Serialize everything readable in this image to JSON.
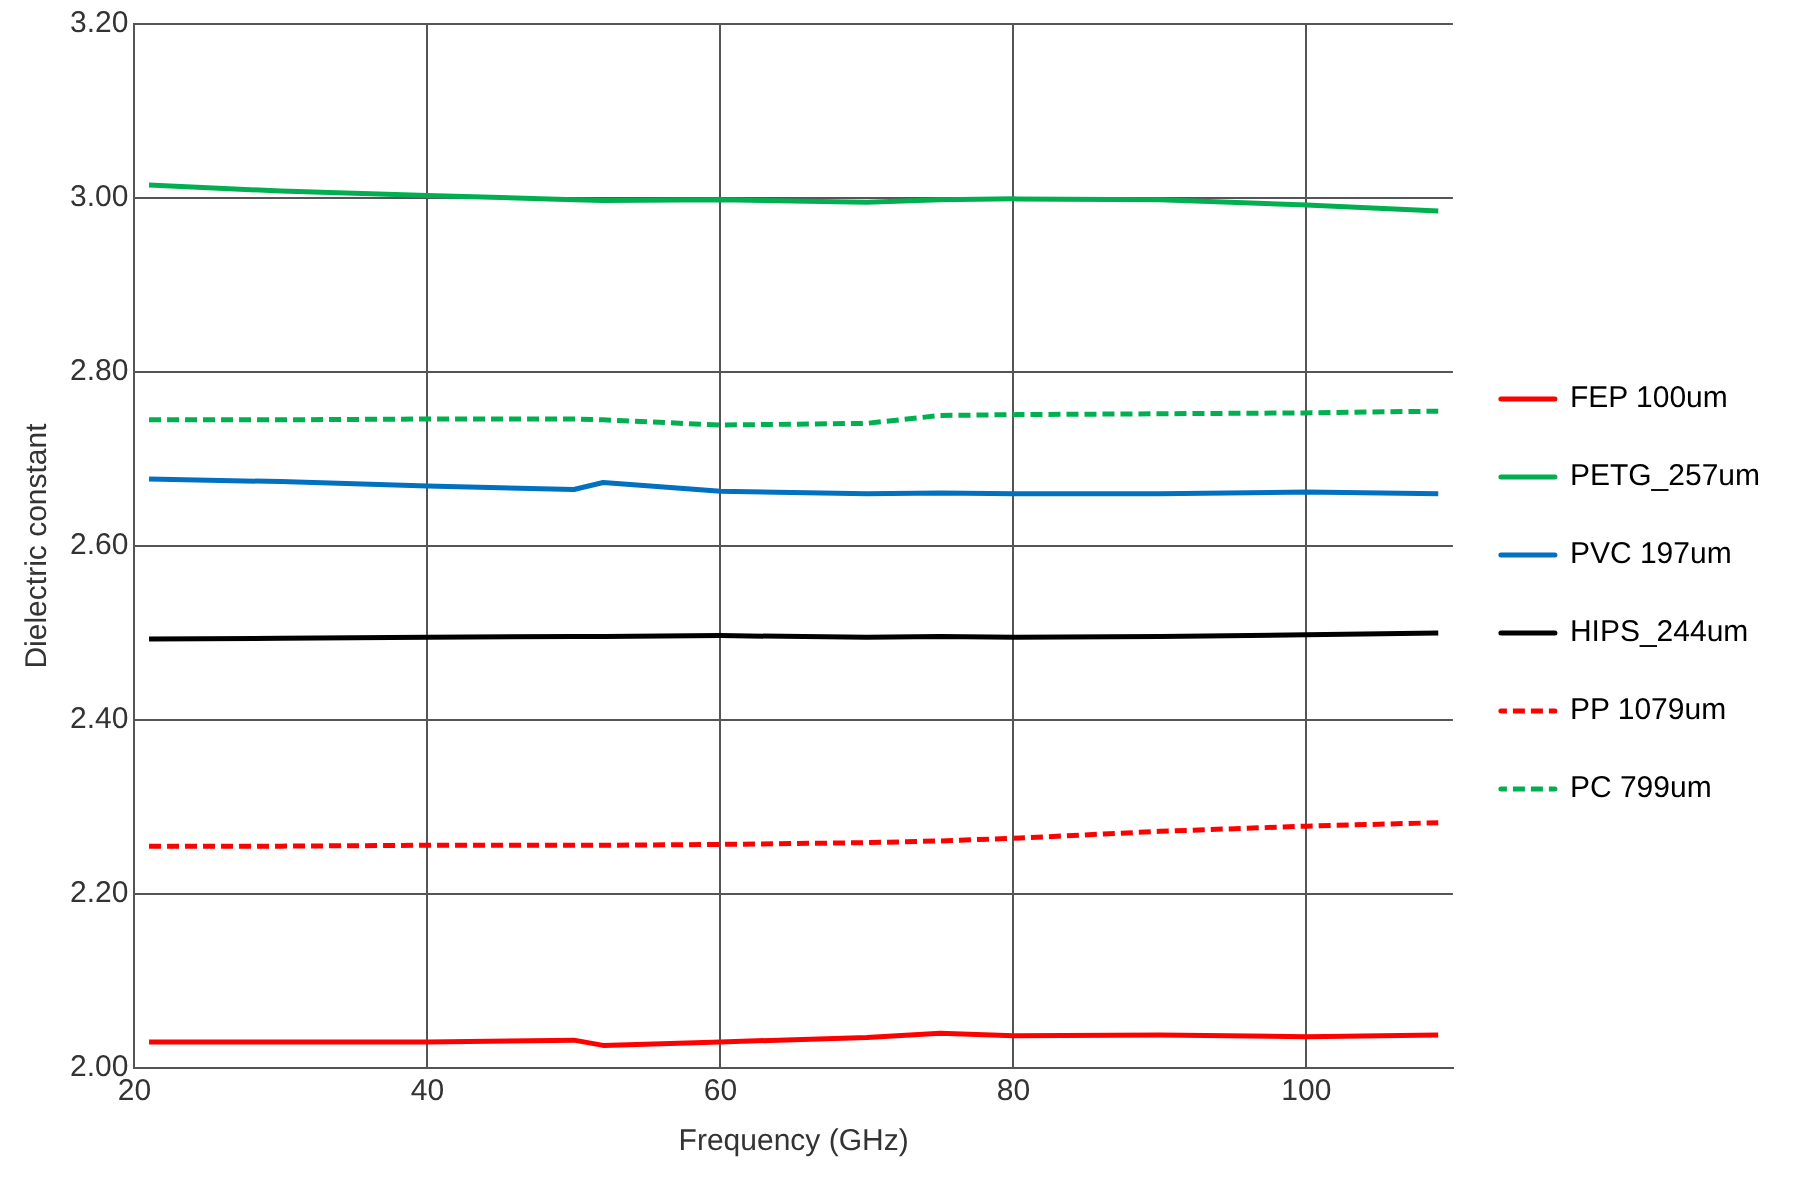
{
  "chart_data": {
    "type": "line",
    "xlabel": "Frequency (GHz)",
    "ylabel": "Dielectric constant",
    "xlim": [
      20,
      110
    ],
    "xticks": [
      20,
      40,
      60,
      80,
      100
    ],
    "ylim": [
      2.0,
      3.2
    ],
    "yticks": [
      {
        "value": 2.0,
        "label": "2.00"
      },
      {
        "value": 2.2,
        "label": "2.20"
      },
      {
        "value": 2.4,
        "label": "2.40"
      },
      {
        "value": 2.6,
        "label": "2.60"
      },
      {
        "value": 2.8,
        "label": "2.80"
      },
      {
        "value": 3.0,
        "label": "3.00"
      },
      {
        "value": 3.2,
        "label": "3.20"
      }
    ],
    "grid": true,
    "legend": "right",
    "marker": "none",
    "x": [
      21,
      30,
      40,
      50,
      52,
      60,
      70,
      75,
      80,
      90,
      100,
      109
    ],
    "series": [
      {
        "name": "FEP 100um",
        "color": "#ff0000",
        "line_style": "solid",
        "values": [
          2.03,
          2.03,
          2.03,
          2.032,
          2.026,
          2.03,
          2.035,
          2.04,
          2.037,
          2.038,
          2.036,
          2.038
        ]
      },
      {
        "name": "PETG_257um",
        "color": "#00b050",
        "line_style": "solid",
        "values": [
          3.015,
          3.008,
          3.003,
          2.998,
          2.997,
          2.998,
          2.995,
          2.998,
          2.999,
          2.998,
          2.992,
          2.985
        ]
      },
      {
        "name": "PVC 197um",
        "color": "#0070c0",
        "line_style": "solid",
        "values": [
          2.677,
          2.674,
          2.669,
          2.665,
          2.673,
          2.663,
          2.66,
          2.661,
          2.66,
          2.66,
          2.662,
          2.66
        ]
      },
      {
        "name": "HIPS_244um",
        "color": "#000000",
        "line_style": "solid",
        "values": [
          2.493,
          2.494,
          2.495,
          2.496,
          2.496,
          2.497,
          2.495,
          2.496,
          2.495,
          2.496,
          2.498,
          2.5
        ]
      },
      {
        "name": "PP 1079um",
        "color": "#ff0000",
        "line_style": "dashed",
        "values": [
          2.255,
          2.255,
          2.256,
          2.256,
          2.256,
          2.257,
          2.259,
          2.261,
          2.264,
          2.272,
          2.278,
          2.282
        ]
      },
      {
        "name": "PC 799um",
        "color": "#00b050",
        "line_style": "dashed",
        "values": [
          2.745,
          2.745,
          2.746,
          2.746,
          2.745,
          2.739,
          2.741,
          2.75,
          2.751,
          2.752,
          2.753,
          2.755
        ]
      }
    ]
  }
}
